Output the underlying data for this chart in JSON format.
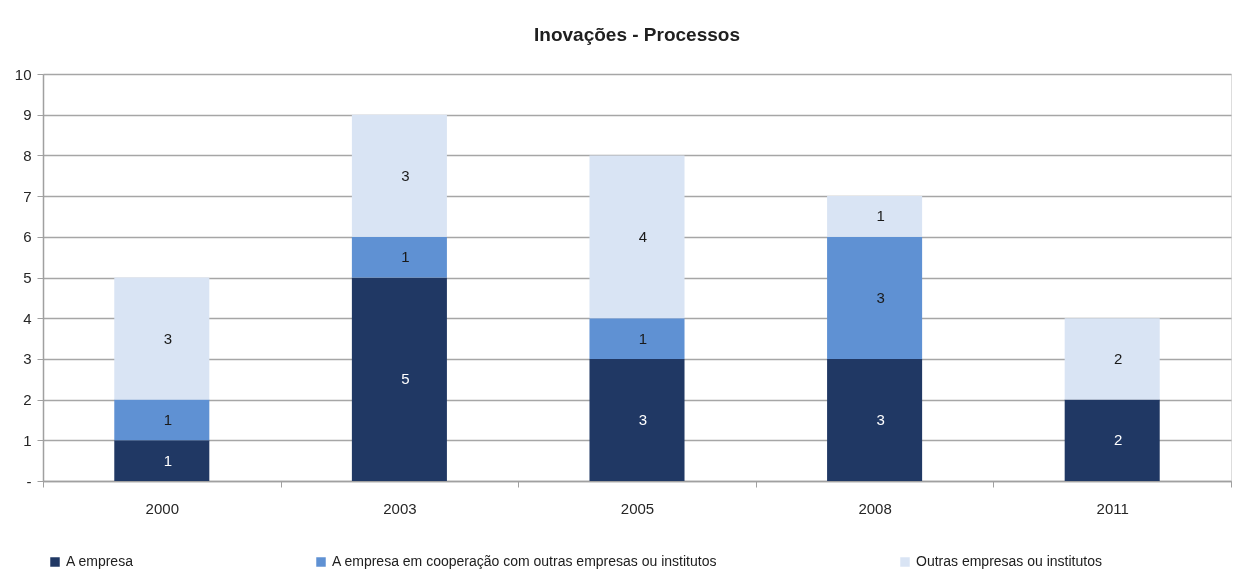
{
  "chart_data": {
    "type": "bar",
    "title": "Inovações - Processos",
    "stacked": true,
    "categories": [
      "2000",
      "2003",
      "2005",
      "2008",
      "2011"
    ],
    "series": [
      {
        "name": "A empresa",
        "color": "#203864",
        "values": [
          1,
          5,
          3,
          3,
          2
        ]
      },
      {
        "name": "A empresa em cooperação com outras empresas ou institutos",
        "color": "#5f91d3",
        "values": [
          1,
          1,
          1,
          3,
          null
        ]
      },
      {
        "name": "Outras empresas ou institutos",
        "color": "#d9e4f4",
        "values": [
          3,
          3,
          4,
          1,
          2
        ]
      }
    ],
    "ylim": [
      0,
      10
    ],
    "yticks": [
      {
        "value": 0,
        "label": "-"
      },
      1,
      2,
      3,
      4,
      5,
      6,
      7,
      8,
      9,
      10
    ],
    "grid": "y",
    "legend": "bottom",
    "data_labels": true
  }
}
